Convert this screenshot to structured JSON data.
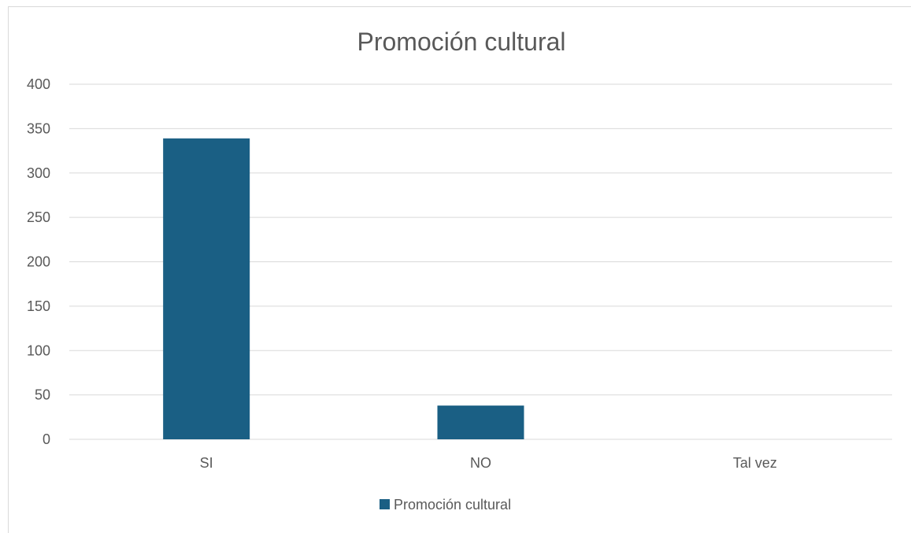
{
  "chart_data": {
    "type": "bar",
    "title": "Promoción cultural",
    "xlabel": "",
    "ylabel": "",
    "categories": [
      "SI",
      "NO",
      "Tal vez"
    ],
    "series": [
      {
        "name": "Promoción cultural",
        "values": [
          339,
          38,
          0
        ],
        "color": "#1a5f84"
      }
    ],
    "ylim": [
      0,
      400
    ],
    "yticks": [
      0,
      50,
      100,
      150,
      200,
      250,
      300,
      350,
      400
    ],
    "grid": true,
    "legend_position": "bottom"
  }
}
